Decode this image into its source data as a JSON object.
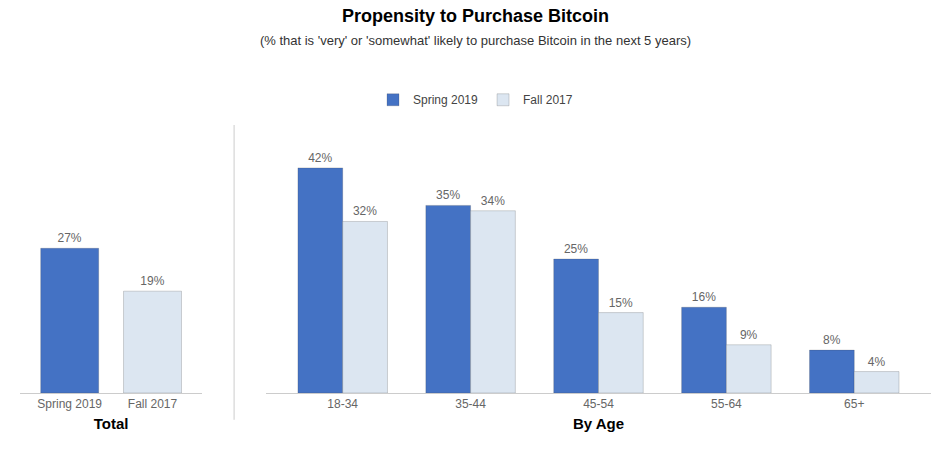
{
  "chart_data": [
    {
      "type": "bar",
      "title": "Propensity to Purchase Bitcoin",
      "subtitle": "(% that is 'very' or 'somewhat' likely to purchase Bitcoin in the next 5 years)",
      "xlabel": "Total",
      "categories": [
        "Spring 2019",
        "Fall 2017"
      ],
      "values": [
        27,
        19
      ],
      "value_labels": [
        "27%",
        "19%"
      ],
      "colors": [
        "#4472c4",
        "#dce6f1"
      ],
      "ylim": [
        0,
        50
      ],
      "data_labels": true,
      "tick_labels": "x",
      "grid": false
    },
    {
      "type": "bar",
      "xlabel": "By Age",
      "categories": [
        "18-34",
        "35-44",
        "45-54",
        "55-64",
        "65+"
      ],
      "series": [
        {
          "name": "Spring 2019",
          "color": "#4472c4",
          "values": [
            42,
            35,
            25,
            16,
            8
          ],
          "value_labels": [
            "42%",
            "35%",
            "25%",
            "16%",
            "8%"
          ]
        },
        {
          "name": "Fall 2017",
          "color": "#dce6f1",
          "values": [
            32,
            34,
            15,
            9,
            4
          ],
          "value_labels": [
            "32%",
            "34%",
            "15%",
            "9%",
            "4%"
          ]
        }
      ],
      "ylim": [
        0,
        50
      ],
      "data_labels": true,
      "tick_labels": "x",
      "grid": false,
      "legend": "top"
    }
  ]
}
